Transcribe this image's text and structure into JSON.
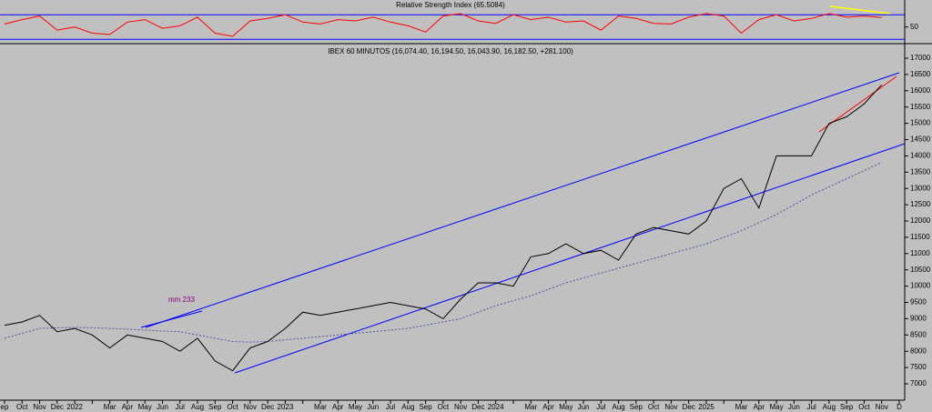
{
  "chart_data": [
    {
      "type": "line",
      "title": "Relative Strength Index (65.5084)",
      "series": [
        {
          "name": null,
          "color": "#ff0000",
          "values": [
            55,
            62,
            68,
            45,
            50,
            40,
            38,
            58,
            62,
            48,
            52,
            66,
            40,
            35,
            60,
            64,
            70,
            58,
            55,
            62,
            60,
            66,
            58,
            52,
            42,
            68,
            72,
            60,
            56,
            70,
            62,
            66,
            58,
            60,
            45,
            68,
            64,
            56,
            55,
            66,
            72,
            68,
            40,
            62,
            70,
            60,
            64,
            72,
            66,
            68,
            65.5084,
            null
          ]
        }
      ],
      "ylim": [
        23,
        94
      ],
      "yticks": [
        50
      ],
      "levels": [
        30,
        70
      ]
    },
    {
      "type": "line",
      "title": "IBEX 60 MINUTOS (16,074.40, 16,194.50, 16,043.90, 16,182.50, +281.100)",
      "annotation": "mm 233",
      "categories": [
        "ep",
        "Oct",
        "Nov",
        "Dec",
        "2022",
        null,
        "Mar",
        "Apr",
        "May",
        "Jun",
        "Jul",
        "Aug",
        "Sep",
        "Oct",
        "Nov",
        "Dec",
        "2023",
        null,
        "Mar",
        "Apr",
        "May",
        "Jun",
        "Jul",
        "Aug",
        "Sep",
        "Oct",
        "Nov",
        "Dec",
        "2024",
        null,
        "Mar",
        "Apr",
        "May",
        "Jun",
        "Jul",
        "Aug",
        "Sep",
        "Oct",
        "Nov",
        "Dec",
        "2025",
        null,
        "Mar",
        "Apr",
        "May",
        "Jun",
        "Jul",
        "Aug",
        "Sep",
        "Oct",
        "Nov",
        "D"
      ],
      "series": [
        {
          "name": null,
          "color": "#000000",
          "values": [
            8800,
            8900,
            9100,
            8600,
            8700,
            8500,
            8100,
            8500,
            8400,
            8300,
            8000,
            8400,
            7700,
            7400,
            8100,
            8300,
            8700,
            9200,
            9100,
            9200,
            9300,
            9400,
            9500,
            9400,
            9300,
            9000,
            9600,
            10100,
            10100,
            10000,
            10900,
            11000,
            11300,
            11000,
            11100,
            10800,
            11600,
            11800,
            11700,
            11600,
            12000,
            13000,
            13300,
            12400,
            14000,
            14000,
            14000,
            15000,
            15200,
            15600,
            16182.5,
            null
          ]
        },
        {
          "name": null,
          "color": "#5050a0",
          "values": [
            8400,
            8550,
            8700,
            8720,
            8730,
            8720,
            8700,
            8680,
            8650,
            8620,
            8600,
            8500,
            8400,
            8300,
            8280,
            8300,
            8350,
            8400,
            8450,
            8500,
            8550,
            8600,
            8650,
            8700,
            8800,
            8900,
            9000,
            9200,
            9400,
            9550,
            9700,
            9900,
            10100,
            10250,
            10400,
            10550,
            10700,
            10850,
            11000,
            11150,
            11300,
            11500,
            11700,
            11950,
            12200,
            12500,
            12800,
            13050,
            13300,
            13550,
            13800,
            null
          ]
        }
      ],
      "ylim": [
        7000,
        17000
      ],
      "yticks": [
        7000,
        7500,
        8000,
        8500,
        9000,
        9500,
        10000,
        10500,
        11000,
        11500,
        12000,
        12500,
        13000,
        13500,
        14000,
        14500,
        15000,
        15500,
        16000,
        16500,
        17000
      ]
    }
  ]
}
